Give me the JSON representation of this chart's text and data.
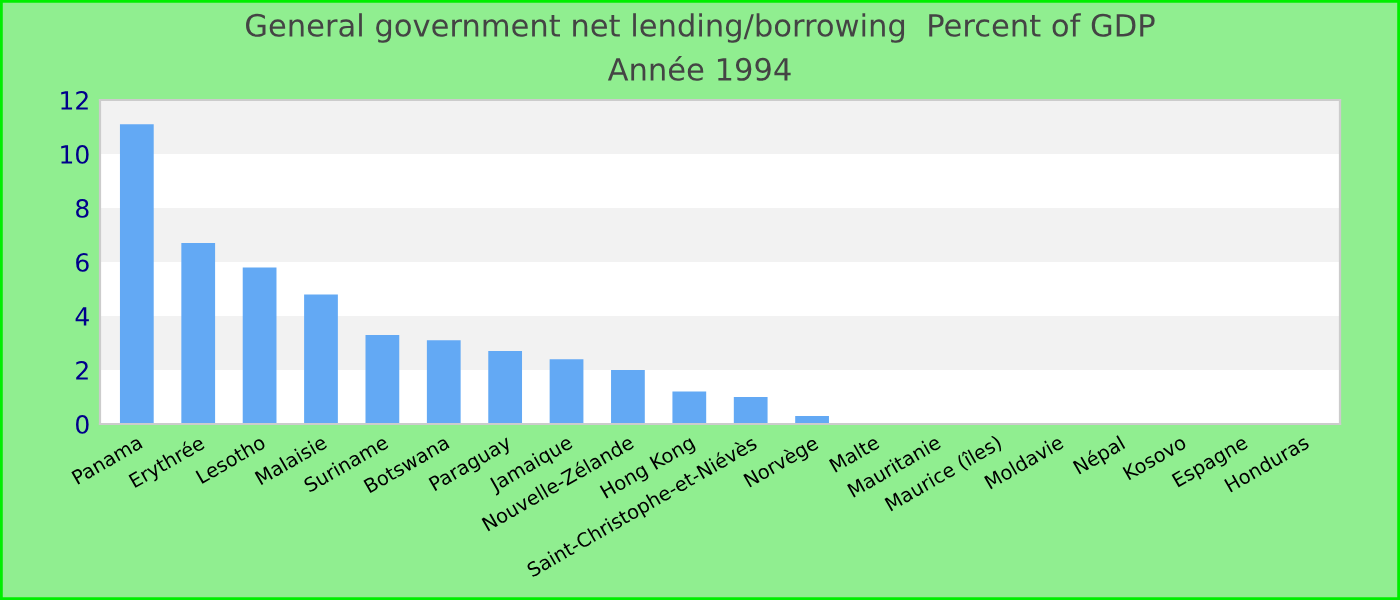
{
  "chart_data": {
    "type": "bar",
    "title": "General government net lending/borrowing  Percent of GDP",
    "subtitle": "Année 1994",
    "categories": [
      "Panama",
      "Erythrée",
      "Lesotho",
      "Malaisie",
      "Suriname",
      "Botswana",
      "Paraguay",
      "Jamaique",
      "Nouvelle-Zélande",
      "Hong Kong",
      "Saint-Christophe-et-Niévès",
      "Norvège",
      "Malte",
      "Mauritanie",
      "Maurice (îles)",
      "Moldavie",
      "Népal",
      "Kosovo",
      "Espagne",
      "Honduras"
    ],
    "values": [
      11.1,
      6.7,
      5.8,
      4.8,
      3.3,
      3.1,
      2.7,
      2.4,
      2.0,
      1.2,
      1.0,
      0.3,
      0,
      0,
      0,
      0,
      0,
      0,
      0,
      0
    ],
    "color": "#63a9f4",
    "ylim": [
      0,
      12
    ],
    "yticks": [
      0,
      2,
      4,
      6,
      8,
      10,
      12
    ],
    "bands": [
      {
        "axis": "y",
        "from": 2,
        "to": 4,
        "color": "#f2f2f2"
      },
      {
        "axis": "y",
        "from": 6,
        "to": 8,
        "color": "#f2f2f2"
      },
      {
        "axis": "y",
        "from": 10,
        "to": 12,
        "color": "#f2f2f2"
      }
    ],
    "legend": false
  }
}
